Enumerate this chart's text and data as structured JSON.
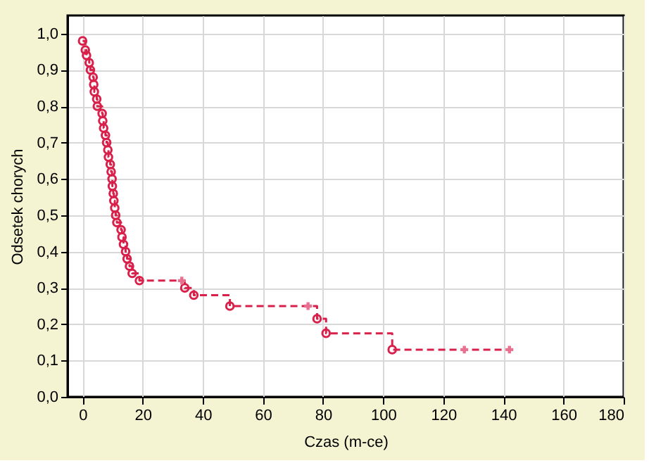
{
  "chart_data": {
    "type": "step",
    "xlabel": "Czas (m-ce)",
    "ylabel": "Odsetek chorych",
    "xlim": [
      -5,
      180
    ],
    "xticks": [
      0,
      20,
      40,
      60,
      80,
      100,
      120,
      140,
      160,
      180
    ],
    "ylim": [
      0,
      1.05
    ],
    "yticks": [
      {
        "value": 0,
        "label": "0,0"
      },
      {
        "value": 0.1,
        "label": "0,1"
      },
      {
        "value": 0.2,
        "label": "0,2"
      },
      {
        "value": 0.3,
        "label": "0,3"
      },
      {
        "value": 0.4,
        "label": "0,4"
      },
      {
        "value": 0.5,
        "label": "0,5"
      },
      {
        "value": 0.6,
        "label": "0,6"
      },
      {
        "value": 0.7,
        "label": "0,7"
      },
      {
        "value": 0.8,
        "label": "0,8"
      },
      {
        "value": 0.9,
        "label": "0,9"
      },
      {
        "value": 1.0,
        "label": "1,0"
      }
    ],
    "grid": true,
    "series": [
      {
        "type": "step",
        "color": "#d8204a",
        "marker": "none",
        "line_style": "dashed",
        "x": [
          0,
          0.9,
          1.3,
          2.2,
          2.6,
          3.5,
          3.7,
          3.9,
          4.7,
          4.9,
          6.5,
          6.7,
          7.0,
          7.6,
          8.0,
          8.4,
          8.6,
          9.2,
          9.5,
          9.8,
          9.9,
          10.2,
          10.4,
          10.7,
          11.0,
          11.4,
          12.8,
          13.1,
          13.6,
          14.3,
          14.8,
          15.6,
          16.5,
          18.9,
          33,
          34,
          37,
          49,
          75,
          78,
          81,
          103,
          127,
          142
        ],
        "values": [
          0.98,
          0.955,
          0.94,
          0.92,
          0.9,
          0.88,
          0.86,
          0.84,
          0.82,
          0.8,
          0.78,
          0.76,
          0.74,
          0.72,
          0.7,
          0.68,
          0.66,
          0.64,
          0.62,
          0.6,
          0.58,
          0.56,
          0.54,
          0.52,
          0.5,
          0.48,
          0.46,
          0.44,
          0.42,
          0.4,
          0.38,
          0.36,
          0.34,
          0.32,
          0.32,
          0.3,
          0.28,
          0.25,
          0.25,
          0.215,
          0.175,
          0.13,
          0.13,
          0.13
        ]
      },
      {
        "type": "scatter",
        "color": "#d8204a",
        "marker": "circle",
        "x": [
          0,
          0.9,
          1.3,
          2.2,
          2.6,
          3.5,
          3.7,
          3.9,
          4.7,
          4.9,
          6.5,
          6.7,
          7.0,
          7.6,
          8.0,
          8.4,
          8.6,
          9.2,
          9.5,
          9.8,
          9.9,
          10.2,
          10.4,
          10.7,
          11.0,
          11.4,
          12.8,
          13.1,
          13.6,
          14.3,
          14.8,
          15.6,
          16.5,
          18.9,
          34,
          37,
          49,
          78,
          81,
          103
        ],
        "values": [
          0.98,
          0.955,
          0.94,
          0.92,
          0.9,
          0.88,
          0.86,
          0.84,
          0.82,
          0.8,
          0.78,
          0.76,
          0.74,
          0.72,
          0.7,
          0.68,
          0.66,
          0.64,
          0.62,
          0.6,
          0.58,
          0.56,
          0.54,
          0.52,
          0.5,
          0.48,
          0.46,
          0.44,
          0.42,
          0.4,
          0.38,
          0.36,
          0.34,
          0.32,
          0.3,
          0.28,
          0.25,
          0.215,
          0.175,
          0.13
        ]
      },
      {
        "type": "scatter",
        "color": "#e87090",
        "marker": "cross",
        "x": [
          33,
          75,
          127,
          142
        ],
        "values": [
          0.32,
          0.25,
          0.13,
          0.13
        ]
      }
    ]
  }
}
